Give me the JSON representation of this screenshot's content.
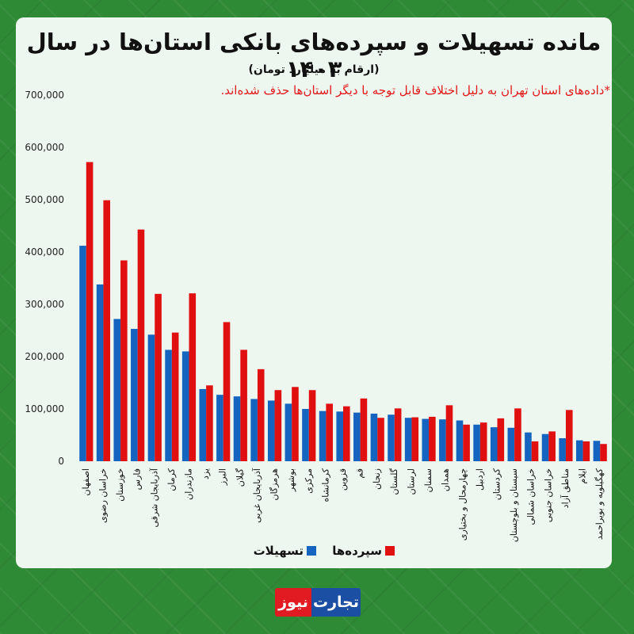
{
  "title": "مانده تسهیلات و سپرده‌های بانکی استان‌ها در سال ۱۴۰۳",
  "subtitle": "(ارقام به میلیارد تومان)",
  "note": "*داده‌های استان تهران به دلیل اختلاف قابل توجه با دیگر استان‌ها حذف شده‌اند.",
  "logo": {
    "part1": "نیوز",
    "part2": "تجارت"
  },
  "colors": {
    "loans": "#1565c0",
    "deposits": "#e01010",
    "background": "#2f8a36",
    "panel": "#eef7ef"
  },
  "chart_data": {
    "type": "bar",
    "title": "مانده تسهیلات و سپرده‌های بانکی استان‌ها در سال ۱۴۰۳",
    "xlabel": "",
    "ylabel": "",
    "ylim": [
      0,
      700000
    ],
    "yticks": [
      0,
      100000,
      200000,
      300000,
      400000,
      500000,
      600000,
      700000
    ],
    "ytick_labels": [
      "0",
      "100,000",
      "200,000",
      "300,000",
      "400,000",
      "500,000",
      "600,000",
      "700,000"
    ],
    "grid": false,
    "legend_position": "bottom-center",
    "categories": [
      "اصفهان",
      "خراسان رضوی",
      "خوزستان",
      "فارس",
      "آذربایجان شرقی",
      "کرمان",
      "مازندران",
      "یزد",
      "البرز",
      "گیلان",
      "آذربایجان غربی",
      "هرمزگان",
      "بوشهر",
      "مرکزی",
      "کرمانشاه",
      "قزوین",
      "قم",
      "زنجان",
      "گلستان",
      "لرستان",
      "سمنان",
      "همدان",
      "چهارمحال و بختیاری",
      "اردبیل",
      "کردستان",
      "سیستان و بلوچستان",
      "خراسان شمالی",
      "خراسان جنوبی",
      "مناطق آزاد",
      "ایلام",
      "کهگیلویه و بویراحمد"
    ],
    "series": [
      {
        "name": "تسهیلات",
        "values": [
          412000,
          338000,
          272000,
          253000,
          242000,
          213000,
          210000,
          138000,
          127000,
          124000,
          119000,
          116000,
          110000,
          100000,
          96000,
          95000,
          93000,
          91000,
          89000,
          83000,
          81000,
          80000,
          78000,
          70000,
          65000,
          64000,
          55000,
          52000,
          44000,
          40000,
          39000
        ]
      },
      {
        "name": "سپرده‌ها",
        "values": [
          572000,
          499000,
          384000,
          443000,
          320000,
          246000,
          321000,
          145000,
          266000,
          213000,
          176000,
          136000,
          142000,
          136000,
          110000,
          105000,
          120000,
          83000,
          101000,
          84000,
          85000,
          107000,
          70000,
          74000,
          82000,
          101000,
          38000,
          57000,
          98000,
          38000,
          33000
        ]
      }
    ]
  }
}
